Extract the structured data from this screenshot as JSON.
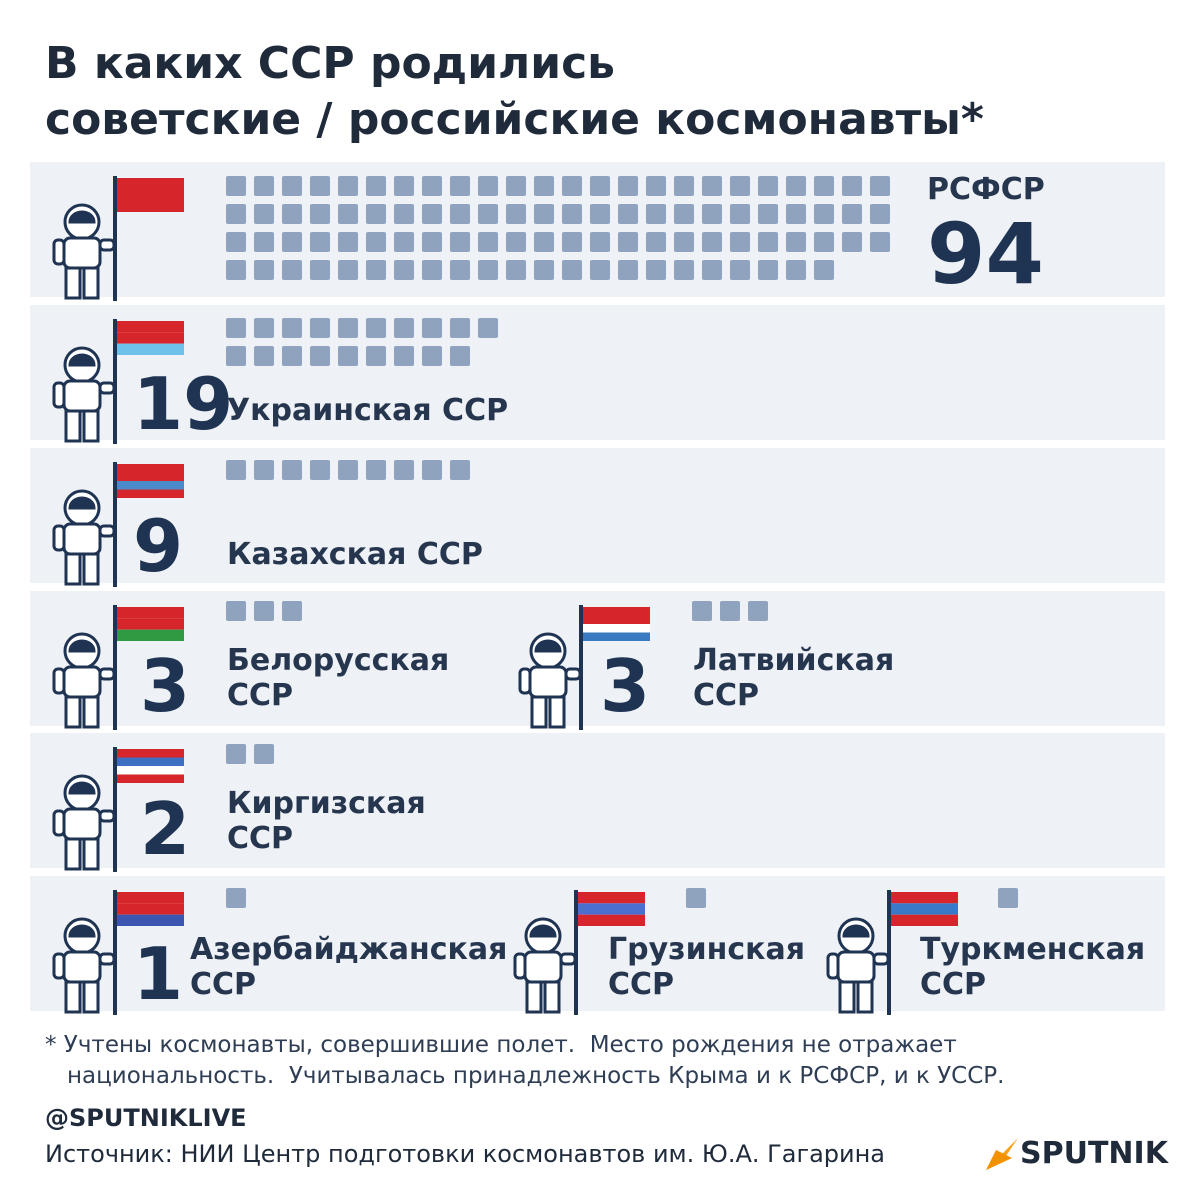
{
  "title": [
    "В каких ССР родились",
    "советские / российские космонавты*"
  ],
  "entries": [
    {
      "name": "РСФСР",
      "value": 94
    },
    {
      "name": "Украинская ССР",
      "value": 19
    },
    {
      "name": "Казахская ССР",
      "value": 9
    },
    {
      "name": "Белорусская ССР",
      "value": 3
    },
    {
      "name": "Латвийская ССР",
      "value": 3
    },
    {
      "name": "Киргизская ССР",
      "value": 2
    },
    {
      "name": "Азербайджанская ССР",
      "value": 1
    },
    {
      "name": "Грузинская ССР",
      "value": 1
    },
    {
      "name": "Туркменская ССР",
      "value": 1
    }
  ],
  "footnote": "* Учтены космонавты, совершившие полет.  Место рождения не отражает национальность.  Учитывалась принадлежность Крыма и к РСФСР, и к УССР.",
  "handle": "@SPUTNIKLIVE",
  "source": "Источник: НИИ Центр подготовки космонавтов им. Ю.А. Гагарина",
  "logo": "SPUTNIK"
}
